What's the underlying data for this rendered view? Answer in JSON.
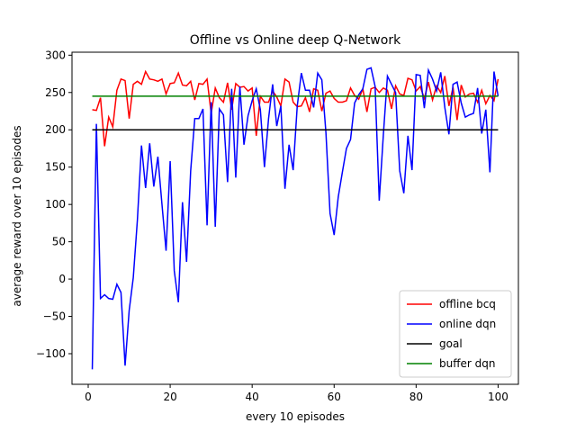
{
  "chart_data": {
    "type": "line",
    "title": "Offline vs Online deep Q-Network",
    "x_label": "every 10 episodes",
    "y_label": "average reward over 10 episodes",
    "x": [
      1,
      2,
      3,
      4,
      5,
      6,
      7,
      8,
      9,
      10,
      11,
      12,
      13,
      14,
      15,
      16,
      17,
      18,
      19,
      20,
      21,
      22,
      23,
      24,
      25,
      26,
      27,
      28,
      29,
      30,
      31,
      32,
      33,
      34,
      35,
      36,
      37,
      38,
      39,
      40,
      41,
      42,
      43,
      44,
      45,
      46,
      47,
      48,
      49,
      50,
      51,
      52,
      53,
      54,
      55,
      56,
      57,
      58,
      59,
      60,
      61,
      62,
      63,
      64,
      65,
      66,
      67,
      68,
      69,
      70,
      71,
      72,
      73,
      74,
      75,
      76,
      77,
      78,
      79,
      80,
      81,
      82,
      83,
      84,
      85,
      86,
      87,
      88,
      89,
      90,
      91,
      92,
      93,
      94,
      95,
      96,
      97,
      98,
      99,
      100
    ],
    "series": [
      {
        "name": "offline bcq",
        "color": "#ff0000",
        "values": [
          227,
          226,
          243,
          178,
          217,
          204,
          253,
          268,
          266,
          215,
          261,
          265,
          261,
          278,
          268,
          267,
          265,
          268,
          248,
          262,
          263,
          276,
          260,
          259,
          265,
          240,
          262,
          261,
          268,
          222,
          256,
          243,
          237,
          263,
          227,
          262,
          257,
          258,
          252,
          256,
          192,
          245,
          237,
          237,
          252,
          244,
          232,
          268,
          264,
          237,
          231,
          232,
          243,
          224,
          255,
          253,
          225,
          249,
          252,
          242,
          237,
          237,
          239,
          256,
          246,
          241,
          255,
          224,
          255,
          257,
          250,
          256,
          253,
          228,
          259,
          248,
          246,
          269,
          267,
          252,
          258,
          242,
          264,
          240,
          259,
          250,
          272,
          232,
          257,
          213,
          260,
          244,
          248,
          249,
          237,
          253,
          235,
          246,
          239,
          268
        ]
      },
      {
        "name": "online dqn",
        "color": "#0000ff",
        "values": [
          -121,
          208,
          -26,
          -21,
          -26,
          -27,
          -7,
          -18,
          -116,
          -42,
          2,
          79,
          179,
          122,
          182,
          124,
          164,
          100,
          38,
          158,
          11,
          -31,
          103,
          23,
          145,
          215,
          215,
          228,
          72,
          237,
          70,
          228,
          220,
          130,
          255,
          136,
          258,
          180,
          219,
          239,
          255,
          227,
          150,
          215,
          261,
          205,
          232,
          121,
          180,
          146,
          232,
          276,
          253,
          253,
          230,
          276,
          267,
          196,
          88,
          59,
          110,
          143,
          175,
          187,
          236,
          247,
          255,
          281,
          283,
          258,
          105,
          193,
          272,
          261,
          250,
          145,
          115,
          192,
          146,
          274,
          273,
          229,
          280,
          268,
          252,
          277,
          230,
          194,
          261,
          264,
          236,
          217,
          220,
          222,
          256,
          195,
          227,
          143,
          278,
          245
        ]
      },
      {
        "name": "goal",
        "color": "#000000",
        "values": [
          200,
          200,
          200,
          200,
          200,
          200,
          200,
          200,
          200,
          200,
          200,
          200,
          200,
          200,
          200,
          200,
          200,
          200,
          200,
          200,
          200,
          200,
          200,
          200,
          200,
          200,
          200,
          200,
          200,
          200,
          200,
          200,
          200,
          200,
          200,
          200,
          200,
          200,
          200,
          200,
          200,
          200,
          200,
          200,
          200,
          200,
          200,
          200,
          200,
          200,
          200,
          200,
          200,
          200,
          200,
          200,
          200,
          200,
          200,
          200,
          200,
          200,
          200,
          200,
          200,
          200,
          200,
          200,
          200,
          200,
          200,
          200,
          200,
          200,
          200,
          200,
          200,
          200,
          200,
          200,
          200,
          200,
          200,
          200,
          200,
          200,
          200,
          200,
          200,
          200,
          200,
          200,
          200,
          200,
          200,
          200,
          200,
          200,
          200,
          200
        ]
      },
      {
        "name": "buffer dqn",
        "color": "#008000",
        "values": [
          245,
          245,
          245,
          245,
          245,
          245,
          245,
          245,
          245,
          245,
          245,
          245,
          245,
          245,
          245,
          245,
          245,
          245,
          245,
          245,
          245,
          245,
          245,
          245,
          245,
          245,
          245,
          245,
          245,
          245,
          245,
          245,
          245,
          245,
          245,
          245,
          245,
          245,
          245,
          245,
          245,
          245,
          245,
          245,
          245,
          245,
          245,
          245,
          245,
          245,
          245,
          245,
          245,
          245,
          245,
          245,
          245,
          245,
          245,
          245,
          245,
          245,
          245,
          245,
          245,
          245,
          245,
          245,
          245,
          245,
          245,
          245,
          245,
          245,
          245,
          245,
          245,
          245,
          245,
          245,
          245,
          245,
          245,
          245,
          245,
          245,
          245,
          245,
          245,
          245,
          245,
          245,
          245,
          245,
          245,
          245,
          245,
          245,
          245,
          245
        ]
      }
    ],
    "xlim": [
      -3.95,
      104.95
    ],
    "ylim": [
      -141,
      304
    ],
    "xticks": [
      0,
      20,
      40,
      60,
      80,
      100
    ],
    "yticks": [
      {
        "value": -100,
        "label": "−100"
      },
      {
        "value": -50,
        "label": "−50"
      },
      0,
      50,
      100,
      150,
      200,
      250,
      300
    ],
    "legend": "lower right"
  }
}
